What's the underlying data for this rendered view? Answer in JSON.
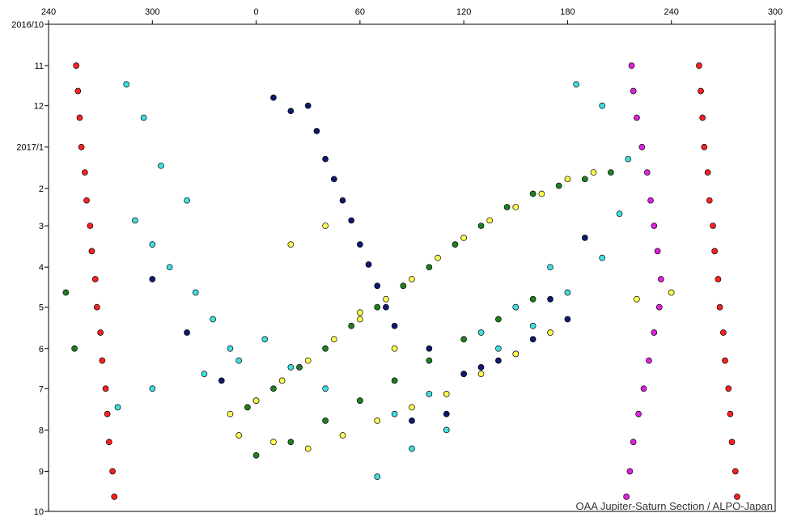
{
  "chart_data": {
    "type": "scatter",
    "credit": "OAA Jupiter-Saturn Section / ALPO-Japan",
    "xlim": [
      240,
      660
    ],
    "xticks": [
      240,
      300,
      {
        "value": 360,
        "label": "0"
      },
      {
        "value": 420,
        "label": "60"
      },
      {
        "value": 480,
        "label": "120"
      },
      {
        "value": 540,
        "label": "180"
      },
      {
        "value": 600,
        "label": "240"
      },
      {
        "value": 660,
        "label": "300"
      }
    ],
    "ylim": [
      "2016-10-01",
      "2017-10-01"
    ],
    "yticks": [
      {
        "value": "2016-10-01",
        "label": "2016/10"
      },
      {
        "value": "2016-11-01",
        "label": "11"
      },
      {
        "value": "2016-12-01",
        "label": "12"
      },
      {
        "value": "2017-01-01",
        "label": "2017/1"
      },
      {
        "value": "2017-02-01",
        "label": "2"
      },
      {
        "value": "2017-03-01",
        "label": "3"
      },
      {
        "value": "2017-04-01",
        "label": "4"
      },
      {
        "value": "2017-05-01",
        "label": "5"
      },
      {
        "value": "2017-06-01",
        "label": "6"
      },
      {
        "value": "2017-07-01",
        "label": "7"
      },
      {
        "value": "2017-08-01",
        "label": "8"
      },
      {
        "value": "2017-09-01",
        "label": "9"
      },
      {
        "value": "2017-10-01",
        "label": "10"
      }
    ],
    "series": [
      {
        "color": "#ff2020",
        "x": [
          256,
          257,
          258,
          259,
          261,
          262,
          264,
          265,
          267,
          268,
          270,
          271,
          273,
          274,
          275,
          277,
          278,
          616,
          617,
          618,
          619,
          621,
          622,
          624,
          625,
          627,
          628,
          630,
          631,
          633,
          634,
          635,
          637,
          638
        ],
        "values": [
          "2016-11-01",
          "2016-11-20",
          "2016-12-10",
          "2017-01-01",
          "2017-01-20",
          "2017-02-10",
          "2017-03-01",
          "2017-03-20",
          "2017-04-10",
          "2017-05-01",
          "2017-05-20",
          "2017-06-10",
          "2017-07-01",
          "2017-07-20",
          "2017-08-10",
          "2017-09-01",
          "2017-09-20",
          "2016-11-01",
          "2016-11-20",
          "2016-12-10",
          "2017-01-01",
          "2017-01-20",
          "2017-02-10",
          "2017-03-01",
          "2017-03-20",
          "2017-04-10",
          "2017-05-01",
          "2017-05-20",
          "2017-06-10",
          "2017-07-01",
          "2017-07-20",
          "2017-08-10",
          "2017-09-01",
          "2017-09-20"
        ]
      },
      {
        "color": "#40e0e0",
        "x": [
          285,
          295,
          305,
          320,
          290,
          300,
          310,
          325,
          335,
          345,
          280,
          300,
          330,
          350,
          365,
          380,
          400,
          420,
          440,
          460,
          480,
          500,
          520,
          540,
          560,
          570,
          575,
          560,
          545,
          530,
          510,
          490,
          470,
          450,
          430
        ],
        "values": [
          "2016-11-15",
          "2016-12-10",
          "2017-01-15",
          "2017-02-10",
          "2017-02-25",
          "2017-03-15",
          "2017-04-01",
          "2017-04-20",
          "2017-05-10",
          "2017-06-01",
          "2017-07-15",
          "2017-07-01",
          "2017-06-20",
          "2017-06-10",
          "2017-05-25",
          "2017-06-15",
          "2017-07-01",
          "2017-07-10",
          "2017-07-20",
          "2017-07-05",
          "2017-06-20",
          "2017-06-01",
          "2017-05-15",
          "2017-04-20",
          "2017-03-25",
          "2017-02-20",
          "2017-01-10",
          "2016-12-01",
          "2016-11-15",
          "2017-04-01",
          "2017-05-01",
          "2017-05-20",
          "2017-08-01",
          "2017-08-15",
          "2017-09-05"
        ]
      },
      {
        "color": "#101870",
        "x": [
          390,
          395,
          400,
          405,
          410,
          415,
          420,
          425,
          430,
          435,
          440,
          370,
          380,
          460,
          480,
          500,
          520,
          540,
          300,
          320,
          340,
          360,
          450,
          470,
          490,
          510,
          530,
          550
        ],
        "values": [
          "2016-12-01",
          "2016-12-20",
          "2017-01-10",
          "2017-01-25",
          "2017-02-10",
          "2017-02-25",
          "2017-03-15",
          "2017-03-30",
          "2017-04-15",
          "2017-05-01",
          "2017-05-15",
          "2016-11-25",
          "2016-12-05",
          "2017-06-01",
          "2017-06-20",
          "2017-06-10",
          "2017-05-25",
          "2017-05-10",
          "2017-04-10",
          "2017-05-20",
          "2017-06-25",
          "2017-07-10",
          "2017-07-25",
          "2017-07-20",
          "2017-06-15",
          "2017-06-05",
          "2017-04-25",
          "2017-03-10"
        ]
      },
      {
        "color": "#ffff50",
        "x": [
          345,
          360,
          375,
          390,
          405,
          420,
          435,
          450,
          465,
          480,
          495,
          510,
          525,
          540,
          555,
          350,
          370,
          390,
          410,
          430,
          450,
          470,
          490,
          510,
          530,
          380,
          400,
          420,
          440,
          580,
          600
        ],
        "values": [
          "2017-07-20",
          "2017-07-10",
          "2017-06-25",
          "2017-06-10",
          "2017-05-25",
          "2017-05-10",
          "2017-04-25",
          "2017-04-10",
          "2017-03-25",
          "2017-03-10",
          "2017-02-25",
          "2017-02-15",
          "2017-02-05",
          "2017-01-25",
          "2017-01-20",
          "2017-08-05",
          "2017-08-10",
          "2017-08-15",
          "2017-08-05",
          "2017-07-25",
          "2017-07-15",
          "2017-07-05",
          "2017-06-20",
          "2017-06-05",
          "2017-05-20",
          "2017-03-15",
          "2017-03-01",
          "2017-05-05",
          "2017-06-01",
          "2017-04-25",
          "2017-04-20"
        ]
      },
      {
        "color": "#208020",
        "x": [
          355,
          370,
          385,
          400,
          415,
          430,
          445,
          460,
          475,
          490,
          505,
          520,
          535,
          550,
          565,
          360,
          380,
          400,
          420,
          440,
          460,
          480,
          500,
          520,
          250,
          255
        ],
        "values": [
          "2017-07-15",
          "2017-07-01",
          "2017-06-15",
          "2017-06-01",
          "2017-05-15",
          "2017-05-01",
          "2017-04-15",
          "2017-04-01",
          "2017-03-15",
          "2017-03-01",
          "2017-02-15",
          "2017-02-05",
          "2017-01-30",
          "2017-01-25",
          "2017-01-20",
          "2017-08-20",
          "2017-08-10",
          "2017-07-25",
          "2017-07-10",
          "2017-06-25",
          "2017-06-10",
          "2017-05-25",
          "2017-05-10",
          "2017-04-25",
          "2017-04-20",
          "2017-06-01"
        ]
      },
      {
        "color": "#e020e0",
        "x": [
          577,
          578,
          580,
          583,
          586,
          588,
          590,
          592,
          594,
          593,
          590,
          587,
          584,
          581,
          578,
          576,
          574
        ],
        "values": [
          "2016-11-01",
          "2016-11-20",
          "2016-12-10",
          "2017-01-01",
          "2017-01-20",
          "2017-02-10",
          "2017-03-01",
          "2017-03-20",
          "2017-04-10",
          "2017-05-01",
          "2017-05-20",
          "2017-06-10",
          "2017-07-01",
          "2017-07-20",
          "2017-08-10",
          "2017-09-01",
          "2017-09-20"
        ]
      }
    ]
  }
}
